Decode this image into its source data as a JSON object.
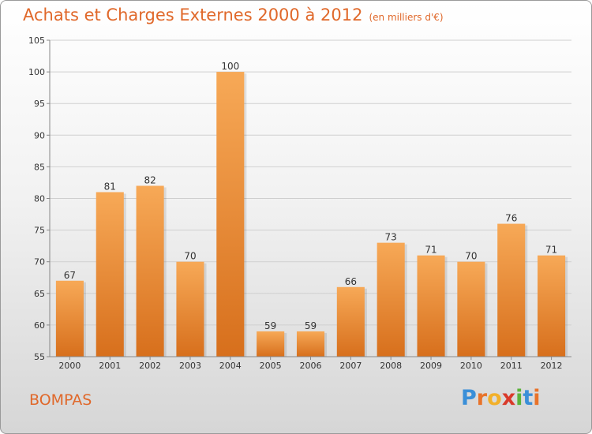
{
  "chart_data": {
    "type": "bar",
    "title": "Achats et Charges Externes 2000 à 2012",
    "subtitle": "(en milliers d'€)",
    "categories": [
      "2000",
      "2001",
      "2002",
      "2003",
      "2004",
      "2005",
      "2006",
      "2007",
      "2008",
      "2009",
      "2010",
      "2011",
      "2012"
    ],
    "values": [
      67,
      81,
      82,
      70,
      100,
      59,
      59,
      66,
      73,
      71,
      70,
      76,
      71
    ],
    "yticks": [
      55,
      60,
      65,
      70,
      75,
      80,
      85,
      90,
      95,
      100,
      105
    ],
    "ylim": [
      55,
      105
    ],
    "grid": true,
    "bar_color": "#f0933c"
  },
  "commune": "BOMPAS",
  "logo": {
    "letters": [
      "P",
      "r",
      "o",
      "x",
      "i",
      "t",
      "i"
    ],
    "colors": [
      "#3a8fd8",
      "#e8732a",
      "#f2b02a",
      "#d93a2a",
      "#5bb33a",
      "#3a8fd8",
      "#e8732a"
    ]
  }
}
